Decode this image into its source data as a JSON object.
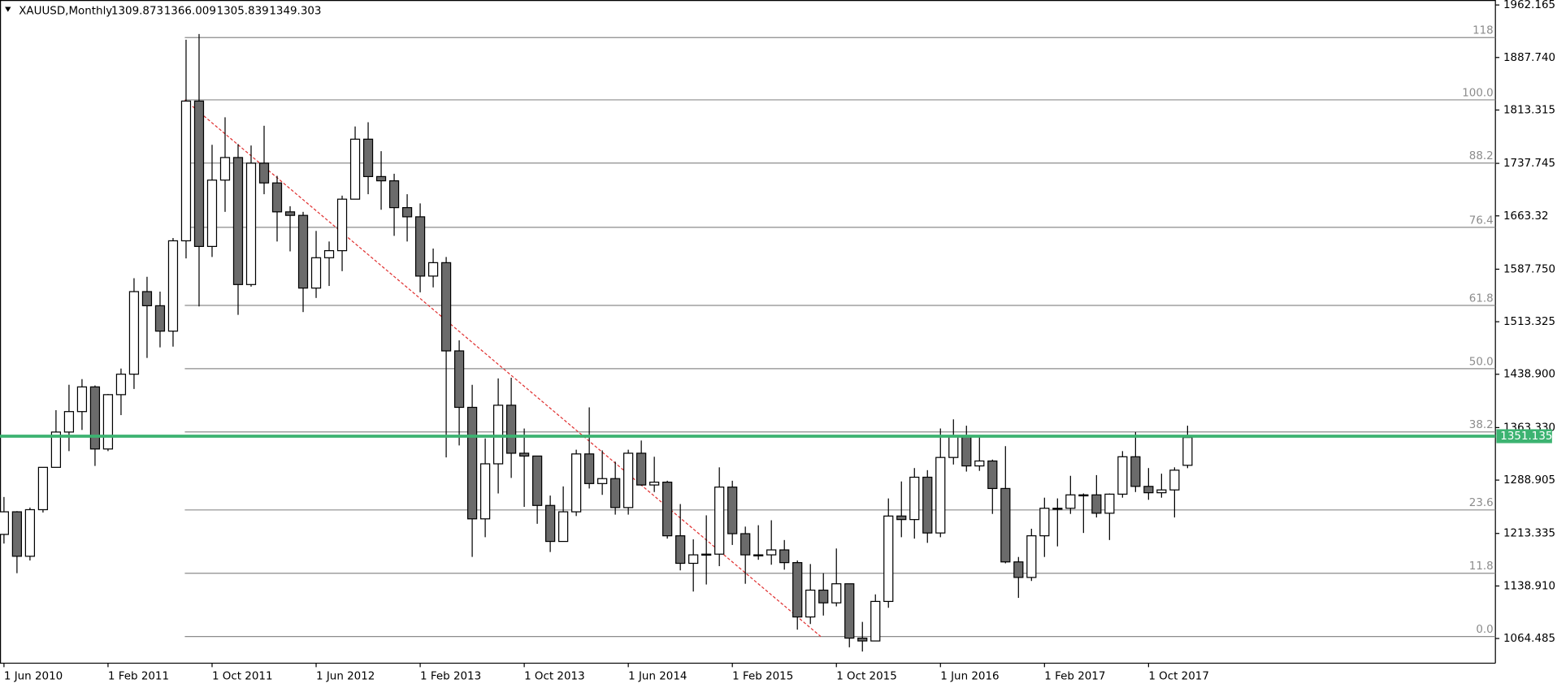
{
  "chart_data": {
    "type": "candlestick",
    "title": "XAUUSD,Monthly",
    "ohlc": [
      1309.873,
      1366.009,
      1305.839,
      1349.303
    ],
    "categories": [
      "1 Jun 2010",
      null,
      null,
      null,
      null,
      null,
      null,
      null,
      "1 Feb 2011",
      null,
      null,
      null,
      null,
      null,
      null,
      null,
      "1 Oct 2011",
      null,
      null,
      null,
      null,
      null,
      null,
      null,
      "1 Jun 2012",
      null,
      null,
      null,
      null,
      null,
      null,
      null,
      "1 Feb 2013",
      null,
      null,
      null,
      null,
      null,
      null,
      null,
      "1 Oct 2013",
      null,
      null,
      null,
      null,
      null,
      null,
      null,
      "1 Jun 2014",
      null,
      null,
      null,
      null,
      null,
      null,
      null,
      "1 Feb 2015",
      null,
      null,
      null,
      null,
      null,
      null,
      null,
      "1 Oct 2015",
      null,
      null,
      null,
      null,
      null,
      null,
      null,
      "1 Jun 2016",
      null,
      null,
      null,
      null,
      null,
      null,
      null,
      "1 Feb 2017",
      null,
      null,
      null,
      null,
      null,
      null,
      null,
      "1 Oct 2017",
      null,
      null,
      null
    ],
    "series": {
      "open": [
        1212,
        1244,
        1181,
        1247,
        1307,
        1357,
        1386,
        1421,
        1333,
        1410,
        1439,
        1556,
        1536,
        1500,
        1628,
        1826,
        1620,
        1714,
        1746,
        1566,
        1738,
        1710,
        1669,
        1664,
        1561,
        1604,
        1614,
        1687,
        1772,
        1719,
        1713,
        1675,
        1662,
        1578,
        1597,
        1472,
        1392,
        1234,
        1312,
        1395,
        1327,
        1323,
        1253,
        1202,
        1244,
        1326,
        1284,
        1291,
        1250,
        1327,
        1282,
        1286,
        1210,
        1171,
        1183,
        1184,
        1279,
        1213,
        1183,
        1183,
        1190,
        1172,
        1095,
        1133,
        1115,
        1142,
        1065,
        1061,
        1117,
        1238,
        1233,
        1293,
        1214,
        1321,
        1351,
        1309,
        1316,
        1277,
        1173,
        1151,
        1210,
        1249,
        1249,
        1268,
        1268,
        1242,
        1269,
        1322,
        1280,
        1271,
        1275,
        1309.873
      ],
      "high": [
        1265,
        1245,
        1250,
        1307,
        1388,
        1424,
        1432,
        1423,
        1411,
        1447,
        1575,
        1577,
        1556,
        1632,
        1913,
        1921,
        1764,
        1803,
        1765,
        1763,
        1791,
        1720,
        1677,
        1669,
        1642,
        1627,
        1692,
        1790,
        1796,
        1755,
        1723,
        1694,
        1681,
        1617,
        1605,
        1487,
        1424,
        1348,
        1433,
        1434,
        1362,
        1321,
        1267,
        1280,
        1332,
        1392,
        1331,
        1315,
        1332,
        1345,
        1322,
        1288,
        1255,
        1205,
        1239,
        1307,
        1288,
        1223,
        1225,
        1232,
        1204,
        1175,
        1170,
        1157,
        1192,
        1142,
        1088,
        1127,
        1263,
        1287,
        1306,
        1303,
        1362,
        1375,
        1366,
        1352,
        1318,
        1337,
        1180,
        1220,
        1264,
        1263,
        1295,
        1270,
        1296,
        1270,
        1330,
        1357,
        1306,
        1298,
        1307,
        1366.009
      ],
      "low": [
        1199,
        1157,
        1175,
        1243,
        1315,
        1330,
        1360,
        1309,
        1330,
        1381,
        1418,
        1462,
        1477,
        1478,
        1603,
        1535,
        1605,
        1669,
        1523,
        1563,
        1694,
        1627,
        1613,
        1527,
        1547,
        1564,
        1585,
        1688,
        1694,
        1672,
        1635,
        1627,
        1555,
        1562,
        1321,
        1338,
        1180,
        1208,
        1270,
        1292,
        1251,
        1227,
        1187,
        1202,
        1238,
        1277,
        1268,
        1240,
        1240,
        1281,
        1272,
        1206,
        1161,
        1131,
        1141,
        1167,
        1197,
        1142,
        1176,
        1169,
        1162,
        1077,
        1085,
        1097,
        1110,
        1052,
        1046,
        1061,
        1108,
        1208,
        1206,
        1200,
        1208,
        1311,
        1301,
        1302,
        1241,
        1171,
        1122,
        1146,
        1180,
        1195,
        1241,
        1214,
        1236,
        1204,
        1264,
        1272,
        1261,
        1264,
        1236,
        1305.839
      ],
      "close": [
        1244,
        1181,
        1247,
        1307,
        1357,
        1386,
        1421,
        1333,
        1410,
        1439,
        1556,
        1536,
        1500,
        1628,
        1826,
        1620,
        1714,
        1746,
        1566,
        1738,
        1710,
        1669,
        1664,
        1561,
        1604,
        1614,
        1687,
        1772,
        1719,
        1713,
        1675,
        1662,
        1578,
        1597,
        1472,
        1392,
        1234,
        1312,
        1395,
        1327,
        1323,
        1253,
        1202,
        1244,
        1326,
        1284,
        1291,
        1250,
        1327,
        1282,
        1286,
        1210,
        1171,
        1183,
        1184,
        1279,
        1213,
        1183,
        1183,
        1190,
        1172,
        1095,
        1133,
        1115,
        1142,
        1065,
        1061,
        1117,
        1238,
        1233,
        1293,
        1214,
        1321,
        1351,
        1309,
        1316,
        1277,
        1173,
        1151,
        1210,
        1249,
        1249,
        1268,
        1268,
        1242,
        1269,
        1322,
        1280,
        1271,
        1275,
        1303,
        1349.303
      ]
    },
    "up_color": "#ffffff",
    "down_color": "#6b6b6b",
    "ylim": [
      1029.5,
      1969.2
    ],
    "yticks": [
      1962.165,
      {
        "value": 1887.74,
        "label": "1887.740"
      },
      1813.315,
      1737.745,
      1663.32,
      {
        "value": 1587.75,
        "label": "1587.750"
      },
      1513.325,
      {
        "value": 1438.9,
        "label": "1438.900"
      },
      {
        "value": 1363.33,
        "label": "1363.330"
      },
      1288.905,
      1213.335,
      {
        "value": 1138.91,
        "label": "1138.910"
      },
      1064.485
    ],
    "fibonacci": [
      {
        "label": "118",
        "value": 1916.0
      },
      {
        "label": "100.0",
        "value": 1827.7
      },
      {
        "label": "88.2",
        "value": 1738.1
      },
      {
        "label": "76.4",
        "value": 1647.1
      },
      {
        "label": "61.8",
        "value": 1536.4
      },
      {
        "label": "50.0",
        "value": 1446.8
      },
      {
        "label": "38.2",
        "value": 1357.2
      },
      {
        "label": "23.6",
        "value": 1246.6
      },
      {
        "label": "11.8",
        "value": 1156.9
      },
      {
        "label": "0.0",
        "value": 1067.3
      }
    ],
    "trendline": {
      "from": 1827.7,
      "to": 1067.3,
      "color": "#e03030"
    },
    "hline": {
      "value": 1351.135,
      "color": "#3cb371"
    }
  }
}
